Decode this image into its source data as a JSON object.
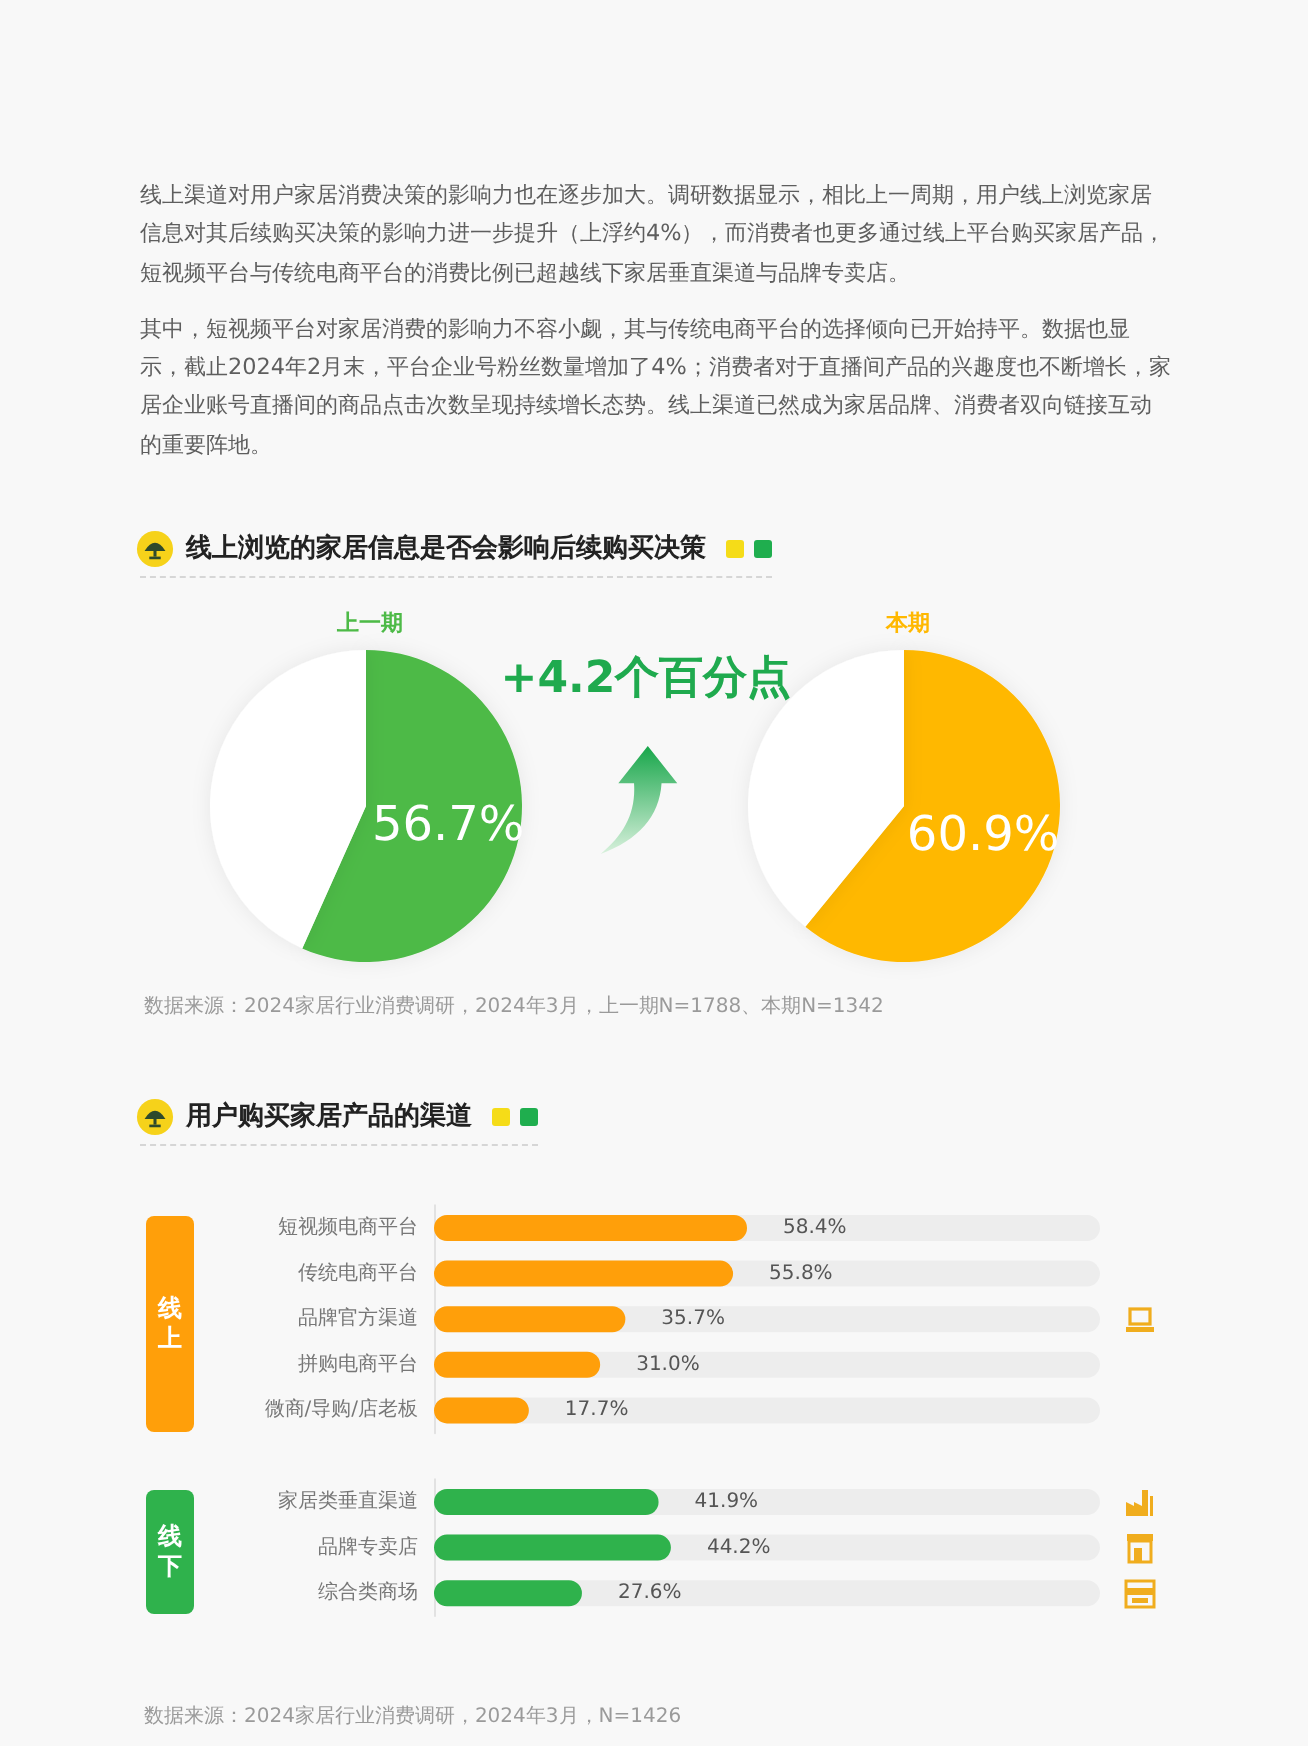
{
  "chart_data": [
    {
      "type": "other",
      "annotations": [
        "线上渠道对用户家居消费决策的影响力也在逐步加大。调研数据显示，相比上一周期，用户线上浏览家居信息对其后续购买决策的影响力进一步提升（上浮约4%），而消费者也更多通过线上平台购买家居产品，短视频平台与传统电商平台的消费比例已超越线下家居垂直渠道与品牌专卖店。",
        "其中，短视频平台对家居消费的影响力不容小觑，其与传统电商平台的选择倾向已开始持平。数据也显示，截止2024年2月末，平台企业号粉丝数量增加了4%；消费者对于直播间产品的兴趣度也不断增长，家居企业账号直播间的商品点击次数呈现持续增长态势。线上渠道已然成为家居品牌、消费者双向链接互动的重要阵地。"
      ]
    },
    {
      "type": "pie",
      "title": "线上浏览的家居信息是否会影响后续购买决策",
      "categories": [
        null,
        null
      ],
      "series": [
        {
          "name": "上一期",
          "colors": [
            "#4dba47",
            "#ffffff"
          ],
          "values": [
            56.7,
            43.3
          ],
          "value_labels": [
            "56.7%",
            null
          ]
        },
        {
          "name": "本期",
          "colors": [
            "#ffb800",
            "#ffffff"
          ],
          "values": [
            60.9,
            39.1
          ],
          "value_labels": [
            "60.9%",
            null
          ]
        }
      ],
      "annotations": [
        "+4.2个百分点",
        "数据来源：2024家居行业消费调研，2024年3月，上一期N=1788、本期N=1342"
      ]
    },
    {
      "type": "bar",
      "orientation": "horizontal",
      "title": "用户购买家居产品的渠道",
      "categories": [
        "短视频电商平台",
        "传统电商平台",
        "品牌官方渠道",
        "拼购电商平台",
        "微商/导购/店老板",
        "家居类垂直渠道",
        "品牌专卖店",
        "综合类商场"
      ],
      "series": [
        {
          "name": "线上",
          "color": "#ff9f0a",
          "values": [
            58.4,
            55.8,
            35.7,
            31.0,
            17.7,
            null,
            null,
            null
          ],
          "value_labels": [
            "58.4%",
            "55.8%",
            "35.7%",
            "31.0%",
            "17.7%",
            null,
            null,
            null
          ]
        },
        {
          "name": "线下",
          "color": "#2fb24c",
          "values": [
            null,
            null,
            null,
            null,
            null,
            41.9,
            44.2,
            27.6
          ],
          "value_labels": [
            null,
            null,
            null,
            null,
            null,
            "41.9%",
            "44.2%",
            "27.6%"
          ]
        }
      ],
      "annotations": [
        "数据来源：2024家居行业消费调研，2024年3月，N=1426"
      ]
    }
  ]
}
